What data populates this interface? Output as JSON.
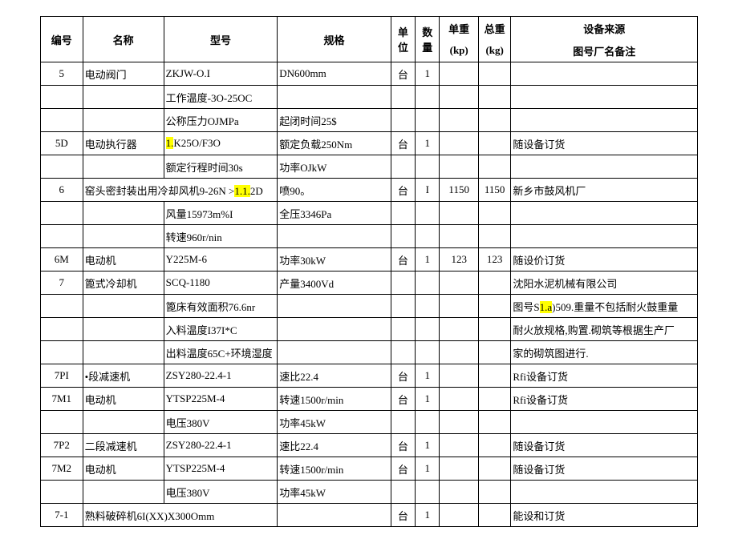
{
  "headers": {
    "id": "编号",
    "name": "名称",
    "model": "型号",
    "spec": "规格",
    "unit": "单\n位",
    "qty": "数\n量",
    "uw_top": "单重",
    "uw_sub": "(kp)",
    "tw_top": "总重",
    "tw_sub": "(kg)",
    "src_top": "设备来源",
    "src_sub": "图号厂名备注"
  },
  "rows": [
    {
      "id": "5",
      "name": "电动阀门",
      "model": "ZKJW-O.I",
      "spec": "DN600mm",
      "unit": "台",
      "qty": "1",
      "uw": "",
      "tw": "",
      "src": ""
    },
    {
      "id": "",
      "name": "",
      "model": "工作温度-3O-25OC",
      "spec": "",
      "unit": "",
      "qty": "",
      "uw": "",
      "tw": "",
      "src": ""
    },
    {
      "id": "",
      "name": "",
      "model": "公称压力OJMPa",
      "spec": "起闭时间25$",
      "unit": "",
      "qty": "",
      "uw": "",
      "tw": "",
      "src": ""
    },
    {
      "id": "5D",
      "name": "电动执行器",
      "model_pre": "1.",
      "model_post": "K25O/F3O",
      "model_hl": true,
      "spec": "额定负载250Nm",
      "unit": "台",
      "qty": "1",
      "uw": "",
      "tw": "",
      "src": "随设备订货"
    },
    {
      "id": "",
      "name": "",
      "model": "额定行程时间30s",
      "spec": "功率OJkW",
      "unit": "",
      "qty": "",
      "uw": "",
      "tw": "",
      "src": ""
    },
    {
      "id": "6",
      "name": "窑头密封装出用冷却风机",
      "model_pre": "9-26N >",
      "model_hl": true,
      "model_mid": "1.1.",
      "model_post": "2D",
      "spec": "喷90。",
      "unit": "台",
      "qty": "I",
      "uw": "1150",
      "tw": "1150",
      "src": "新乡市鼓风机厂",
      "merge_name_model": true
    },
    {
      "id": "",
      "name": "",
      "model": "风量15973m%I",
      "spec": "全压3346Pa",
      "unit": "",
      "qty": "",
      "uw": "",
      "tw": "",
      "src": ""
    },
    {
      "id": "",
      "name": "",
      "model": "转速960r/nin",
      "spec": "",
      "unit": "",
      "qty": "",
      "uw": "",
      "tw": "",
      "src": ""
    },
    {
      "id": "6M",
      "name": "电动机",
      "model": "Y225M-6",
      "spec": "功率30kW",
      "unit": "台",
      "qty": "1",
      "uw": "123",
      "tw": "123",
      "src": "随设价订货"
    },
    {
      "id": "7",
      "name": "篦式冷却机",
      "model": "SCQ-1180",
      "spec": "产量3400Vd",
      "unit": "",
      "qty": "",
      "uw": "",
      "tw": "",
      "src": "沈阳水泥机械有限公司"
    },
    {
      "id": "",
      "name": "",
      "model": "篦床有效面积76.6nr",
      "spec": "",
      "unit": "",
      "qty": "",
      "uw": "",
      "tw": "",
      "src_pre": "图号S",
      "src_hl": true,
      "src_mid": "1.a",
      "src_post": ")509.重量不包括耐火鼓重量"
    },
    {
      "id": "",
      "name": "",
      "model": "入料温度I37I*C",
      "spec": "",
      "unit": "",
      "qty": "",
      "uw": "",
      "tw": "",
      "src": "耐火放规格,购置.砌筑等根据生产厂"
    },
    {
      "id": "",
      "name": "",
      "model": "出料温度65C+环境湿度",
      "spec": "",
      "unit": "",
      "qty": "",
      "uw": "",
      "tw": "",
      "src": "家的砌筑图进行."
    },
    {
      "id": "7PI",
      "name": "•段减速机",
      "model": "ZSY280-22.4-1",
      "spec": "速比22.4",
      "unit": "台",
      "qty": "1",
      "uw": "",
      "tw": "",
      "src": "Rfi设备订货"
    },
    {
      "id": "7M1",
      "name": "电动机",
      "model": "YTSP225M-4",
      "spec": "转速1500r/min",
      "unit": "台",
      "qty": "1",
      "uw": "",
      "tw": "",
      "src": "Rfi设备订货"
    },
    {
      "id": "",
      "name": "",
      "model": "电压380V",
      "spec": "功率45kW",
      "unit": "",
      "qty": "",
      "uw": "",
      "tw": "",
      "src": ""
    },
    {
      "id": "7P2",
      "name": "二段减速机",
      "model": "ZSY280-22.4-1",
      "spec": "速比22.4",
      "unit": "台",
      "qty": "1",
      "uw": "",
      "tw": "",
      "src": "随设备订货"
    },
    {
      "id": "7M2",
      "name": "电动机",
      "model": "YTSP225M-4",
      "spec": "转速1500r/min",
      "unit": "台",
      "qty": "1",
      "uw": "",
      "tw": "",
      "src": "随设备订货"
    },
    {
      "id": "",
      "name": "",
      "model": "电压380V",
      "spec": "功率45kW",
      "unit": "",
      "qty": "",
      "uw": "",
      "tw": "",
      "src": ""
    },
    {
      "id": "7-1",
      "name": "熟料破碎机6I(XX)X300Omm",
      "model": "",
      "spec": "",
      "unit": "台",
      "qty": "1",
      "uw": "",
      "tw": "",
      "src": "能设和订货",
      "merge_name_model": true
    }
  ]
}
